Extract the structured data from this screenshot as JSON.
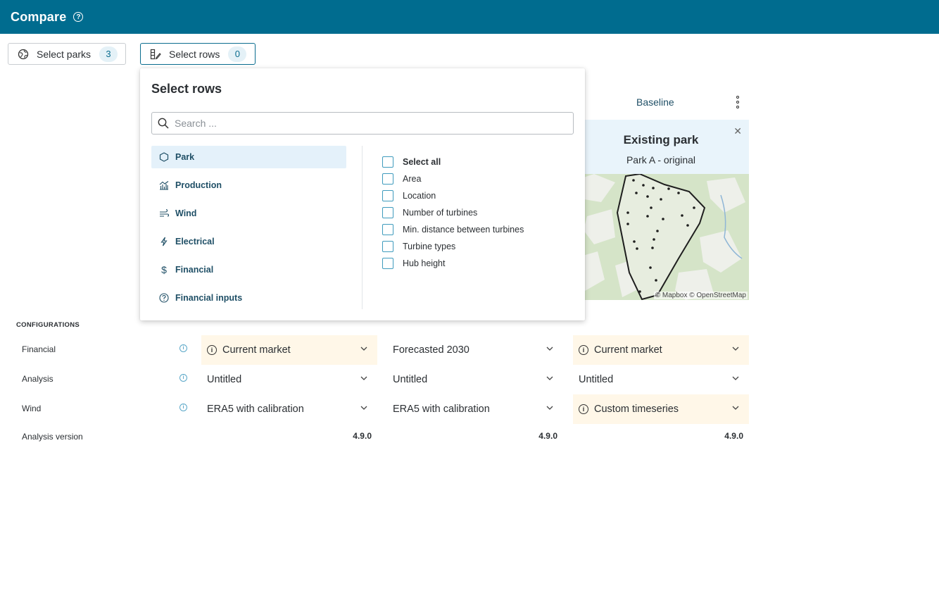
{
  "header": {
    "title": "Compare",
    "help_icon": "question-circle-icon"
  },
  "toolbar": {
    "select_parks": {
      "label": "Select parks",
      "count": "3",
      "icon": "globe-icon"
    },
    "select_rows": {
      "label": "Select rows",
      "count": "0",
      "icon": "rows-edit-icon"
    }
  },
  "column": {
    "header": "Baseline",
    "park_name": "Existing park",
    "park_subtitle": "Park A - original",
    "map_credit": "© Mapbox © OpenStreetMap"
  },
  "popup": {
    "title": "Select rows",
    "search_placeholder": "Search ...",
    "categories": [
      {
        "label": "Park",
        "icon": "hexagon-icon",
        "active": true
      },
      {
        "label": "Production",
        "icon": "bar-chart-icon",
        "active": false
      },
      {
        "label": "Wind",
        "icon": "wind-icon",
        "active": false
      },
      {
        "label": "Electrical",
        "icon": "lightning-icon",
        "active": false
      },
      {
        "label": "Financial",
        "icon": "dollar-icon",
        "active": false
      },
      {
        "label": "Financial inputs",
        "icon": "question-circle-icon",
        "active": false
      }
    ],
    "options": [
      {
        "label": "Select all",
        "checked": false
      },
      {
        "label": "Area",
        "checked": false
      },
      {
        "label": "Location",
        "checked": false
      },
      {
        "label": "Number of turbines",
        "checked": false
      },
      {
        "label": "Min. distance between turbines",
        "checked": false
      },
      {
        "label": "Turbine types",
        "checked": false
      },
      {
        "label": "Hub height",
        "checked": false
      }
    ]
  },
  "configurations": {
    "title": "CONFIGURATIONS",
    "rows": [
      {
        "label": "Financial",
        "values": [
          "Current market",
          "Forecasted 2030",
          "Current market"
        ]
      },
      {
        "label": "Analysis",
        "values": [
          "Untitled",
          "Untitled",
          "Untitled"
        ]
      },
      {
        "label": "Wind",
        "values": [
          "ERA5 with calibration",
          "ERA5 with calibration",
          "Custom timeseries"
        ]
      },
      {
        "label": "Analysis version",
        "values": [
          "4.9.0",
          "4.9.0",
          "4.9.0"
        ]
      }
    ]
  },
  "colors": {
    "header_bg": "#006c8f",
    "accent": "#0a6d8f",
    "warning_bg": "#fff7e8",
    "active_bg": "#e4f1fa"
  }
}
